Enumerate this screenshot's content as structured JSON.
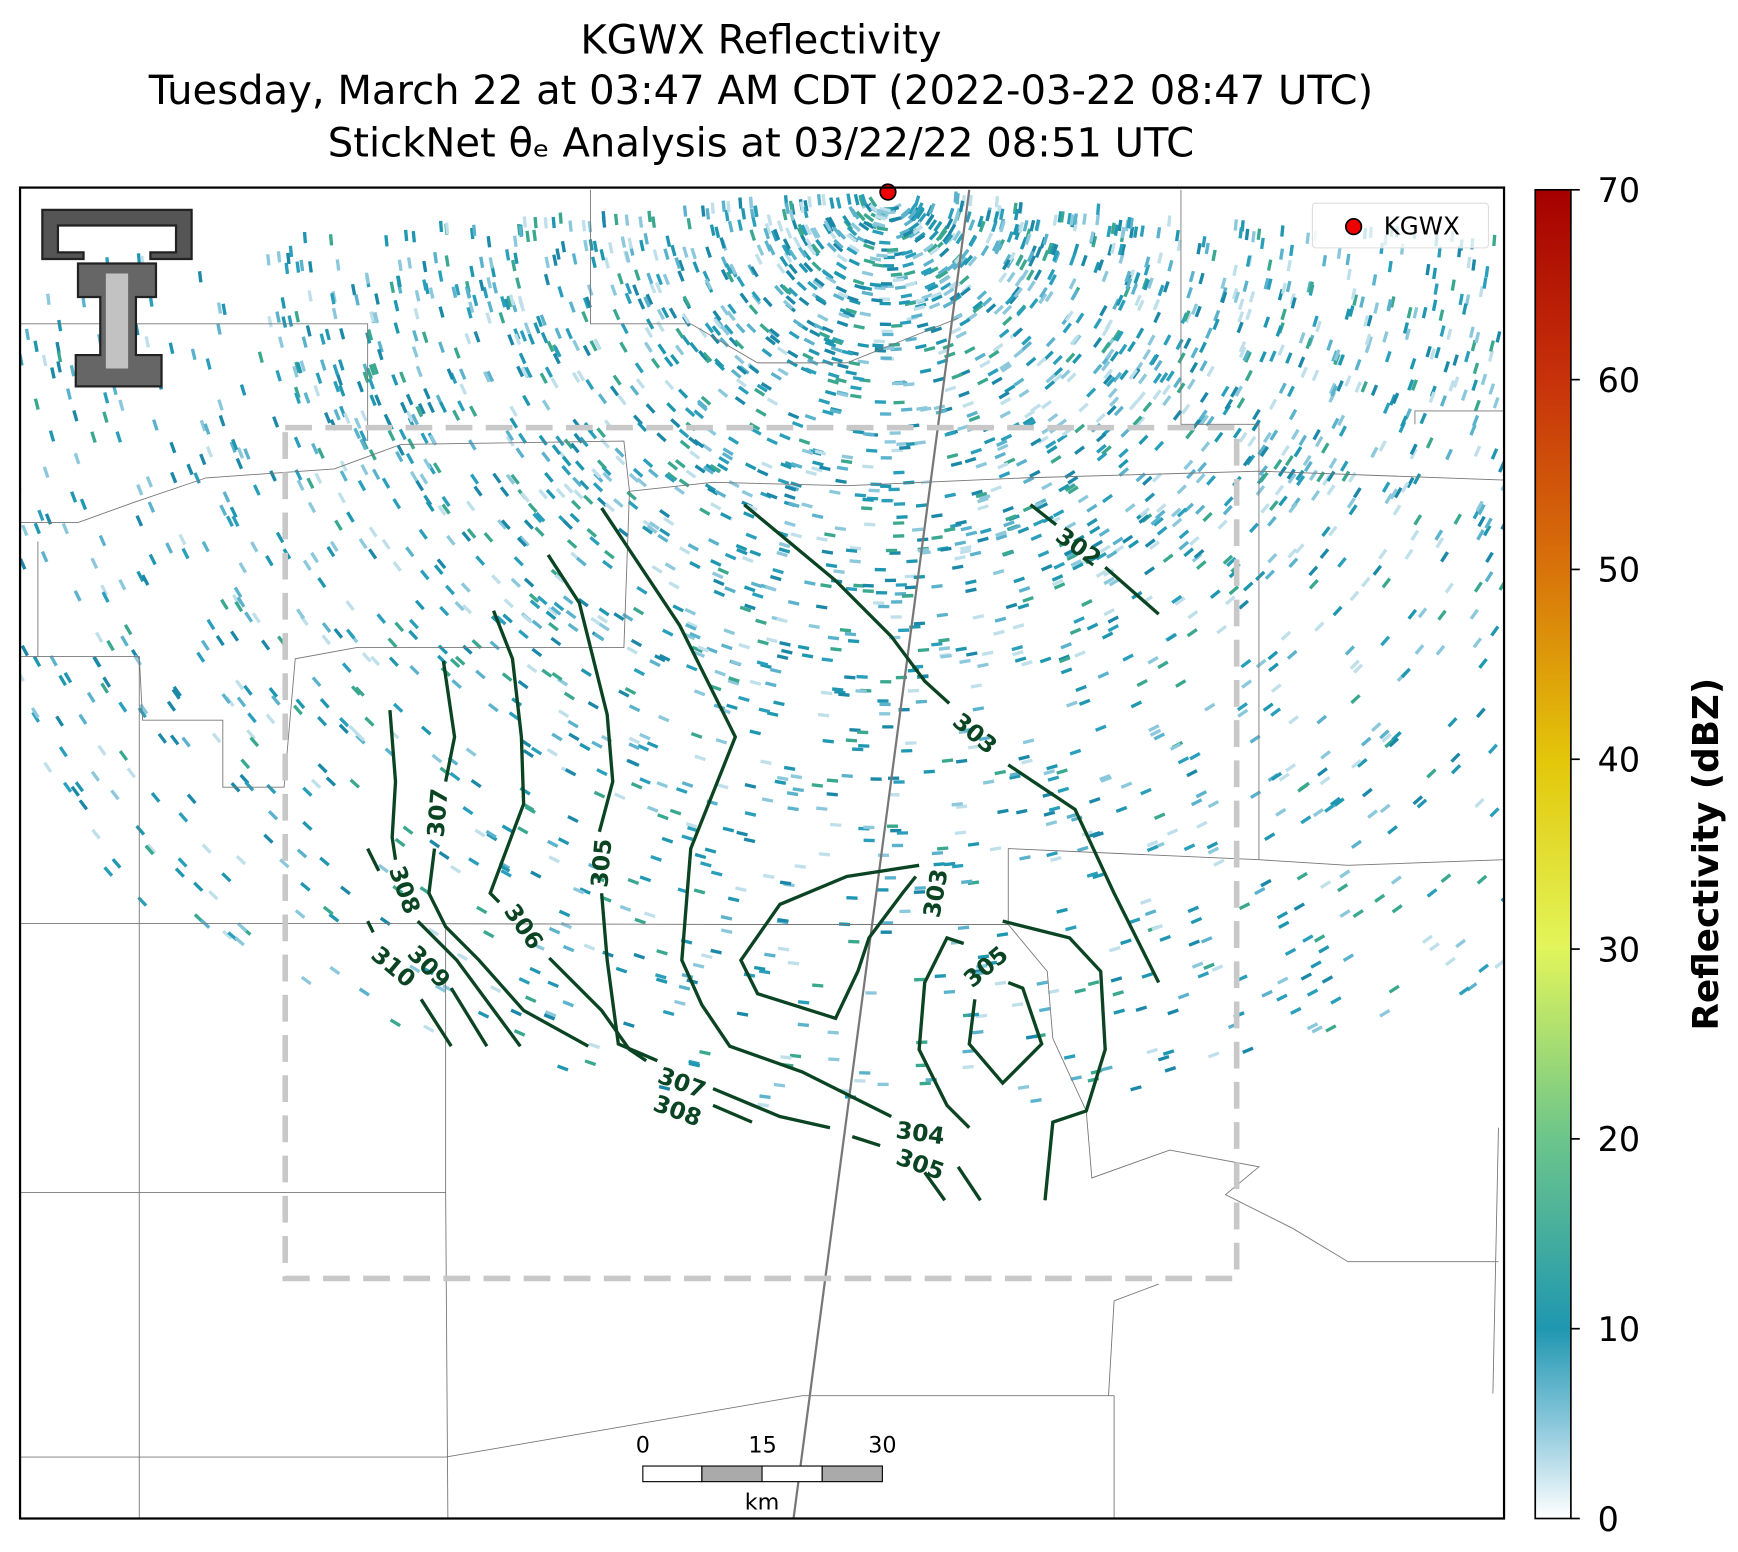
{
  "title": [
    "KGWX Reflectivity",
    "Tuesday, March 22 at 03:47 AM CDT (2022-03-22 08:47 UTC)",
    "StickNet θₑ Analysis at 03/22/22 08:51 UTC"
  ],
  "colorbar": {
    "label": "Reflectivity (dBZ)",
    "lim": [
      0,
      70
    ],
    "ticks": [
      0,
      10,
      20,
      30,
      40,
      50,
      60,
      70
    ]
  },
  "legend": {
    "label": "KGWX"
  },
  "contour_labels": [
    302,
    303,
    303,
    305,
    305,
    306,
    307,
    308,
    309,
    310,
    307,
    308,
    304,
    305
  ],
  "scale_bar": {
    "ticks": [
      0,
      15,
      30
    ],
    "unit": "km"
  }
}
